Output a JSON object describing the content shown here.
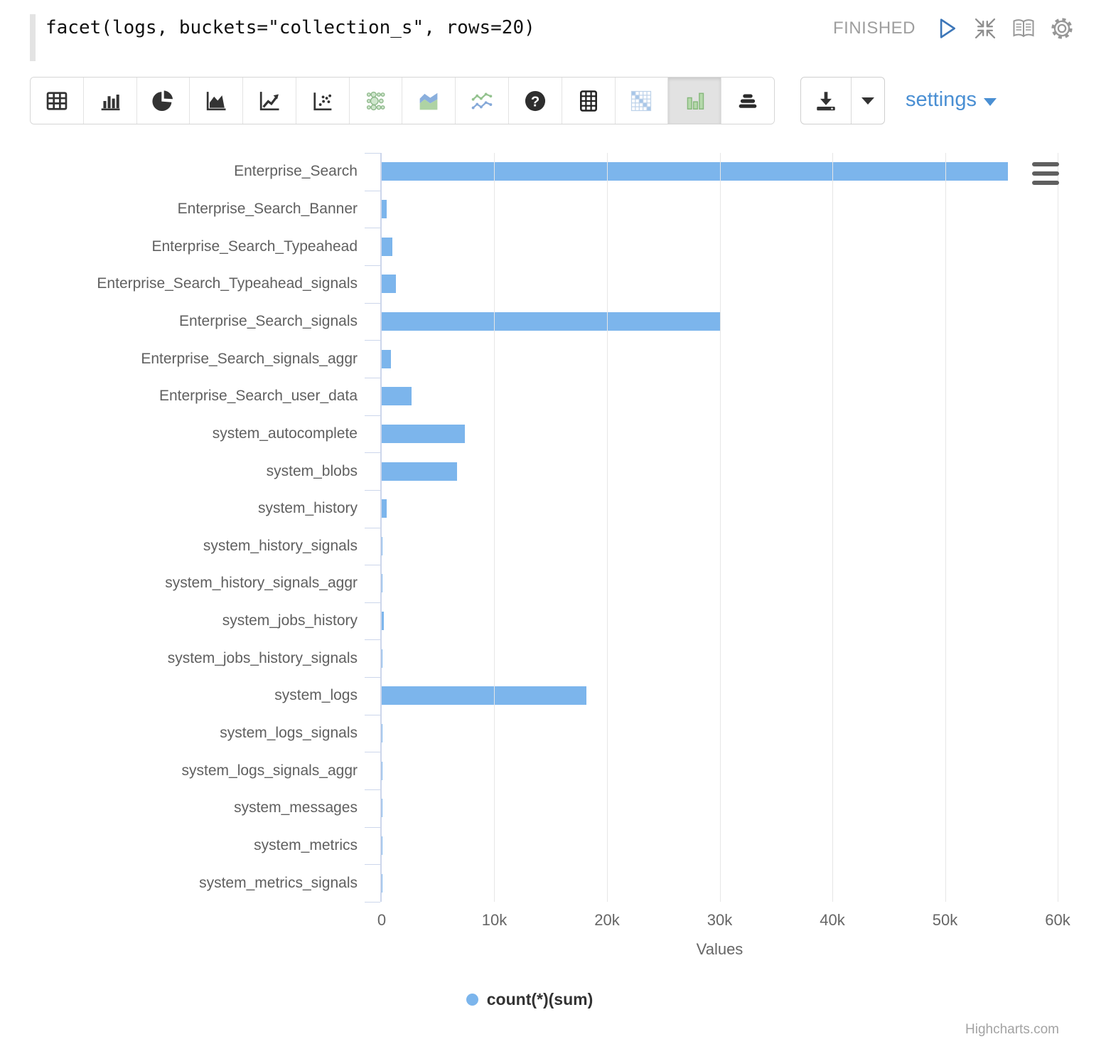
{
  "paragraph": {
    "query": "facet(logs, buckets=\"collection_s\", rows=20)",
    "status": "FINISHED"
  },
  "toolbar": {
    "buttons": [
      "table",
      "column-chart",
      "pie-chart",
      "area-chart",
      "line-chart",
      "scatter-plot",
      "bubble-matrix",
      "stacked-area",
      "multi-series-line",
      "help",
      "pivot-table",
      "heatmap",
      "facet-columns",
      "horizontal-bars"
    ],
    "selected_button": "facet-columns",
    "settings_label": "settings"
  },
  "colors": {
    "bar": "#7cb5ec",
    "settings_link": "#4a8fd3",
    "status_text": "#9e9e9e"
  },
  "chart_data": {
    "type": "bar",
    "orientation": "horizontal",
    "title": "",
    "categories": [
      "Enterprise_Search",
      "Enterprise_Search_Banner",
      "Enterprise_Search_Typeahead",
      "Enterprise_Search_Typeahead_signals",
      "Enterprise_Search_signals",
      "Enterprise_Search_signals_aggr",
      "Enterprise_Search_user_data",
      "system_autocomplete",
      "system_blobs",
      "system_history",
      "system_history_signals",
      "system_history_signals_aggr",
      "system_jobs_history",
      "system_jobs_history_signals",
      "system_logs",
      "system_logs_signals",
      "system_logs_signals_aggr",
      "system_messages",
      "system_metrics",
      "system_metrics_signals"
    ],
    "series": [
      {
        "name": "count(*)(sum)",
        "values": [
          55600,
          430,
          950,
          1270,
          30000,
          830,
          2650,
          7400,
          6700,
          470,
          60,
          30,
          220,
          50,
          18200,
          30,
          20,
          10,
          20,
          10
        ]
      }
    ],
    "xlabel": "Values",
    "ylabel": "",
    "xlim": [
      0,
      60000
    ],
    "x_ticks": [
      "0",
      "10k",
      "20k",
      "30k",
      "40k",
      "50k",
      "60k"
    ],
    "grid": true,
    "legend_position": "bottom",
    "credit": "Highcharts.com"
  }
}
